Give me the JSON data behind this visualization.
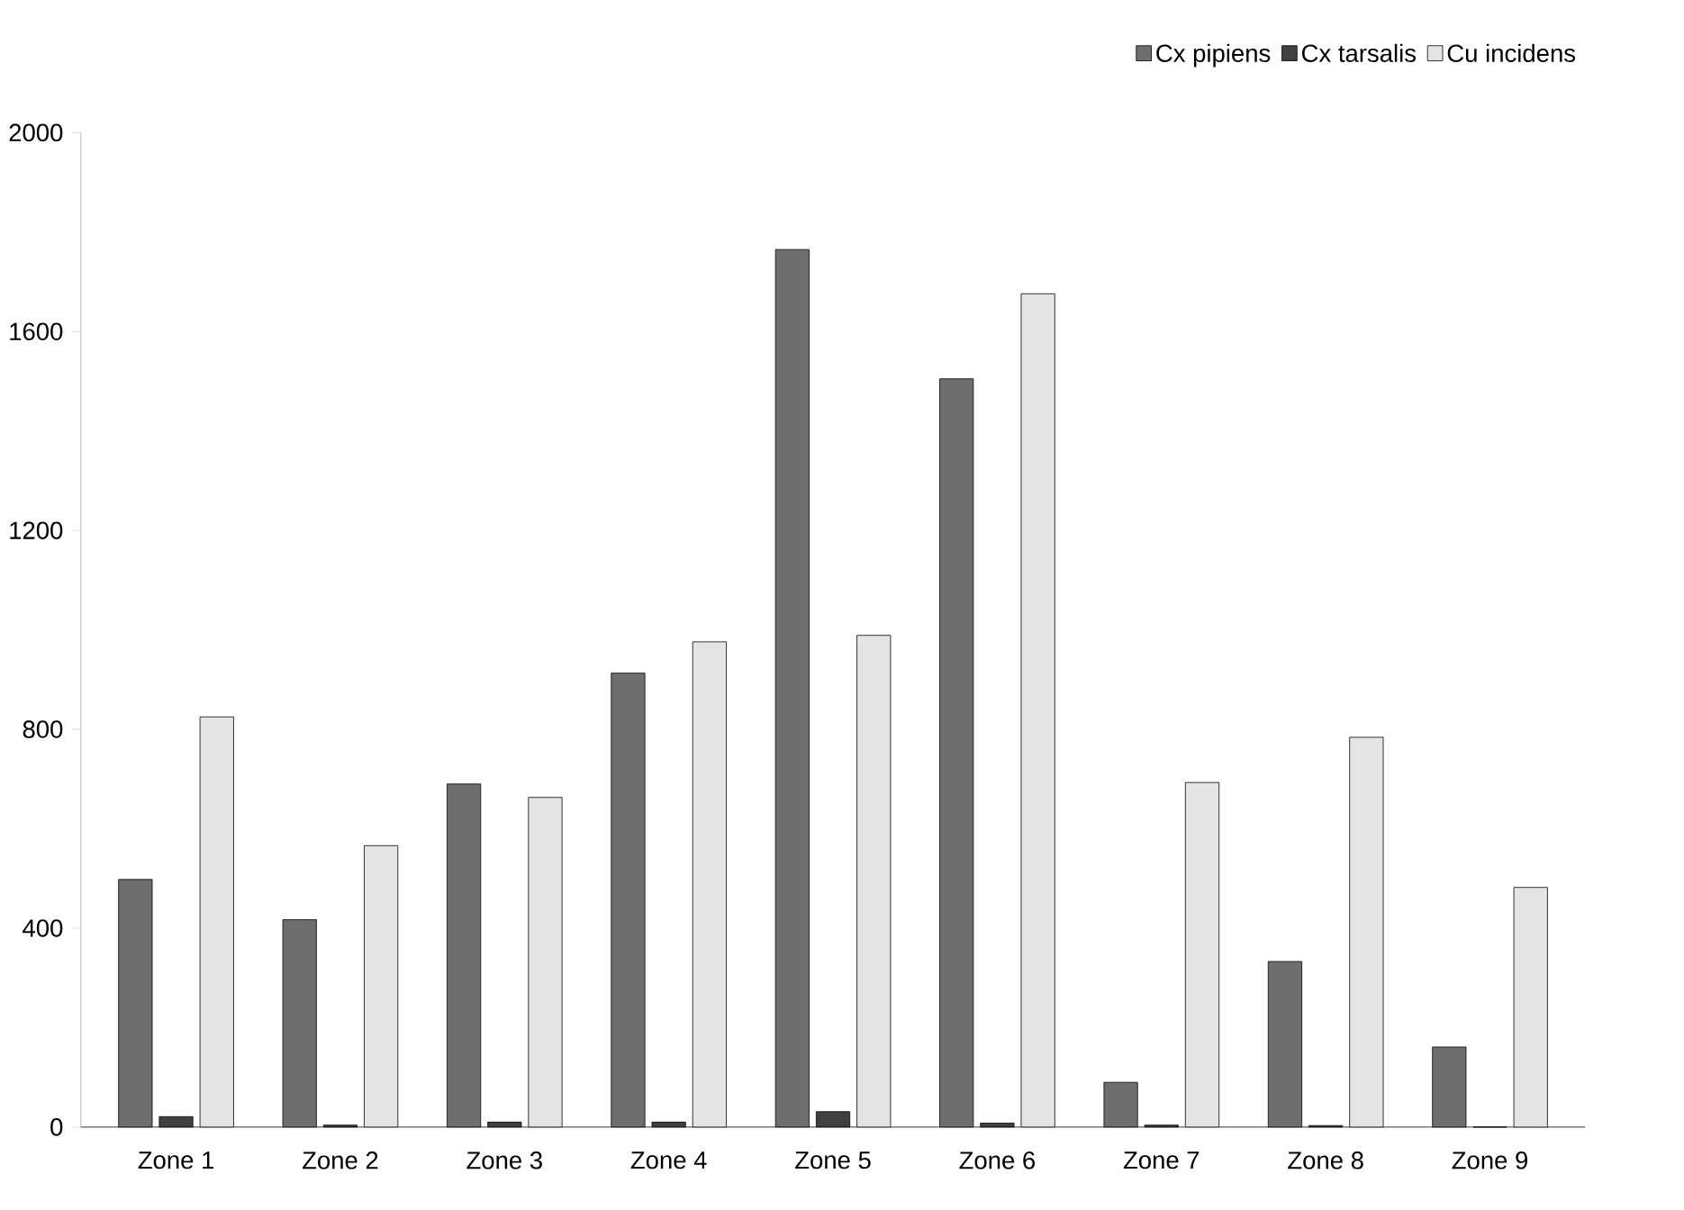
{
  "chart_data": {
    "type": "bar",
    "categories": [
      "Zone 1",
      "Zone 2",
      "Zone 3",
      "Zone 4",
      "Zone 5",
      "Zone 6",
      "Zone 7",
      "Zone 8",
      "Zone 9"
    ],
    "series": [
      {
        "name": "Cx pipiens",
        "color": "#6e6e6e",
        "values": [
          498,
          417,
          690,
          913,
          1765,
          1505,
          90,
          333,
          161
        ]
      },
      {
        "name": "Cx tarsalis",
        "color": "#404040",
        "values": [
          21,
          4,
          10,
          10,
          31,
          8,
          4,
          3,
          0
        ]
      },
      {
        "name": "Cu incidens",
        "color": "#e4e4e4",
        "values": [
          825,
          566,
          663,
          976,
          989,
          1676,
          693,
          784,
          482
        ]
      }
    ],
    "ylim": [
      0,
      2000
    ],
    "yticks": [
      0,
      400,
      800,
      1200,
      1600,
      2000
    ],
    "legend": "top right",
    "grid": false
  }
}
